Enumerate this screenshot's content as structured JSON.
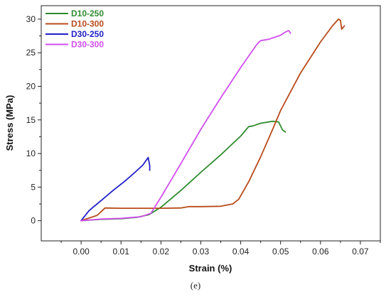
{
  "caption": "(e)",
  "chart_data": {
    "type": "line",
    "xlabel": "Strain (%)",
    "ylabel": "Stress (MPa)",
    "xlim": [
      -0.01,
      0.075
    ],
    "ylim": [
      -3,
      32
    ],
    "xticks": [
      0.0,
      0.01,
      0.02,
      0.03,
      0.04,
      0.05,
      0.06,
      0.07
    ],
    "xtick_labels": [
      "0.00",
      "0.01",
      "0.02",
      "0.03",
      "0.04",
      "0.05",
      "0.06",
      "0.07"
    ],
    "yticks": [
      0,
      5,
      10,
      15,
      20,
      25,
      30
    ],
    "ytick_labels": [
      "0",
      "5",
      "10",
      "15",
      "20",
      "25",
      "30"
    ],
    "grid": false,
    "legend_position": "top-left",
    "series": [
      {
        "name": "D10-250",
        "color": "#2e8b2e",
        "points": [
          [
            0,
            0
          ],
          [
            0.005,
            0.2
          ],
          [
            0.01,
            0.3
          ],
          [
            0.014,
            0.5
          ],
          [
            0.017,
            0.9
          ],
          [
            0.02,
            2.0
          ],
          [
            0.025,
            4.5
          ],
          [
            0.03,
            7.2
          ],
          [
            0.035,
            9.8
          ],
          [
            0.04,
            12.6
          ],
          [
            0.042,
            14.0
          ],
          [
            0.043,
            14.1
          ],
          [
            0.045,
            14.5
          ],
          [
            0.048,
            14.8
          ],
          [
            0.0495,
            14.7
          ],
          [
            0.0505,
            13.5
          ],
          [
            0.0512,
            13.2
          ]
        ]
      },
      {
        "name": "D10-300",
        "color": "#b84a1a",
        "points": [
          [
            0,
            0
          ],
          [
            0.004,
            0.8
          ],
          [
            0.006,
            1.9
          ],
          [
            0.01,
            1.85
          ],
          [
            0.015,
            1.85
          ],
          [
            0.02,
            1.85
          ],
          [
            0.025,
            1.9
          ],
          [
            0.027,
            2.1
          ],
          [
            0.03,
            2.1
          ],
          [
            0.035,
            2.15
          ],
          [
            0.038,
            2.5
          ],
          [
            0.0395,
            3.2
          ],
          [
            0.042,
            5.8
          ],
          [
            0.045,
            9.5
          ],
          [
            0.048,
            13.6
          ],
          [
            0.05,
            16.4
          ],
          [
            0.055,
            22.0
          ],
          [
            0.06,
            26.6
          ],
          [
            0.063,
            29.0
          ],
          [
            0.0645,
            30.0
          ],
          [
            0.065,
            29.8
          ],
          [
            0.0653,
            28.5
          ],
          [
            0.066,
            29.0
          ]
        ]
      },
      {
        "name": "D30-250",
        "color": "#2020c8",
        "points": [
          [
            0,
            0
          ],
          [
            0.002,
            1.5
          ],
          [
            0.005,
            3.0
          ],
          [
            0.008,
            4.5
          ],
          [
            0.011,
            5.9
          ],
          [
            0.0135,
            7.2
          ],
          [
            0.0155,
            8.3
          ],
          [
            0.0168,
            9.4
          ],
          [
            0.0172,
            8.2
          ],
          [
            0.0172,
            7.5
          ]
        ]
      },
      {
        "name": "D30-300",
        "color": "#d14ff0",
        "points": [
          [
            0,
            0
          ],
          [
            0.005,
            0.25
          ],
          [
            0.01,
            0.35
          ],
          [
            0.015,
            0.6
          ],
          [
            0.0175,
            1.1
          ],
          [
            0.02,
            3.5
          ],
          [
            0.025,
            8.5
          ],
          [
            0.03,
            13.6
          ],
          [
            0.035,
            18.3
          ],
          [
            0.04,
            22.8
          ],
          [
            0.044,
            26.2
          ],
          [
            0.045,
            26.8
          ],
          [
            0.047,
            27.0
          ],
          [
            0.048,
            27.2
          ],
          [
            0.05,
            27.6
          ],
          [
            0.051,
            28.0
          ],
          [
            0.052,
            28.3
          ],
          [
            0.0525,
            27.9
          ]
        ]
      }
    ]
  }
}
